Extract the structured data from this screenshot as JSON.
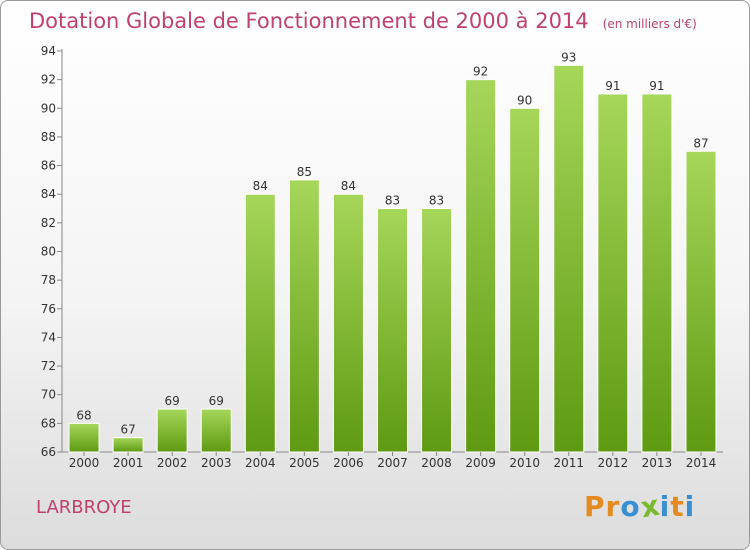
{
  "title": "Dotation Globale de Fonctionnement de 2000 à 2014",
  "subtitle": "(en milliers d'€)",
  "commune": "LARBROYE",
  "logo_text": "Proxiti",
  "colors": {
    "title": "#c0406e",
    "bar_top": "#a6d65a",
    "bar_bottom": "#5e9a12",
    "logo": [
      "#e48a1e",
      "#e48a1e",
      "#3a8fd2",
      "#7bb82e",
      "#3a8fd2",
      "#e48a1e",
      "#3a8fd2"
    ]
  },
  "chart_data": {
    "type": "bar",
    "categories": [
      "2000",
      "2001",
      "2002",
      "2003",
      "2004",
      "2005",
      "2006",
      "2007",
      "2008",
      "2009",
      "2010",
      "2011",
      "2012",
      "2013",
      "2014"
    ],
    "values": [
      68,
      67,
      69,
      69,
      84,
      85,
      84,
      83,
      83,
      92,
      90,
      93,
      91,
      91,
      87
    ],
    "ylim": [
      66,
      94
    ],
    "yticks": [
      66,
      68,
      70,
      72,
      74,
      76,
      78,
      80,
      82,
      84,
      86,
      88,
      90,
      92,
      94
    ],
    "grid": false,
    "data_labels": true
  }
}
